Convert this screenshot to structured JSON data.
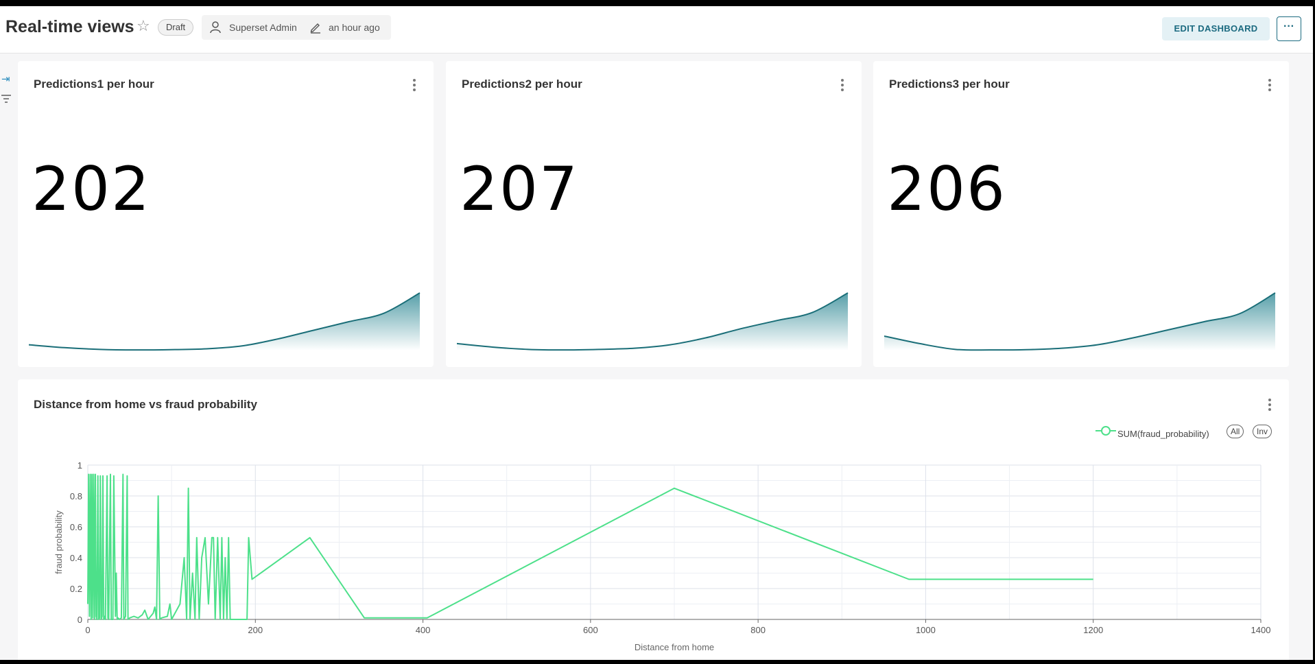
{
  "dashboard": {
    "title": "Real-time views",
    "status": "Draft",
    "owner": "Superset Admin",
    "modified": "an hour ago",
    "edit_label": "EDIT DASHBOARD",
    "more_label": "···"
  },
  "cards": [
    {
      "title": "Predictions1 per hour",
      "value": "202",
      "trend": [
        0.1,
        0.05,
        0.02,
        0.01,
        0.015,
        0.03,
        0.08,
        0.2,
        0.35,
        0.5,
        0.65,
        1.0
      ]
    },
    {
      "title": "Predictions2 per hour",
      "value": "207",
      "trend": [
        0.12,
        0.06,
        0.02,
        0.01,
        0.02,
        0.04,
        0.1,
        0.22,
        0.38,
        0.52,
        0.66,
        1.0
      ]
    },
    {
      "title": "Predictions3 per hour",
      "value": "206",
      "trend": [
        0.25,
        0.12,
        0.02,
        0.01,
        0.015,
        0.04,
        0.1,
        0.22,
        0.36,
        0.5,
        0.64,
        1.0
      ]
    }
  ],
  "scatter_card": {
    "title": "Distance from home vs fraud probability",
    "legend_all": "All",
    "legend_inv": "Inv"
  },
  "chart_data": {
    "type": "line",
    "xlabel": "Distance from home",
    "ylabel": "fraud probability",
    "xlim": [
      0,
      1400
    ],
    "ylim": [
      0,
      1
    ],
    "xticks": [
      "0",
      "200",
      "400",
      "600",
      "800",
      "1000",
      "1200",
      "1400"
    ],
    "yticks": [
      "0",
      "0.2",
      "0.4",
      "0.6",
      "0.8",
      "1"
    ],
    "grid": true,
    "legend": "top-right",
    "color": "#4de08a",
    "series": [
      {
        "name": "SUM(fraud_probability)",
        "x": [
          0,
          1,
          2,
          3,
          4,
          5,
          6,
          7,
          8,
          9,
          10,
          11,
          12,
          13,
          14,
          15,
          16,
          17,
          18,
          19,
          20,
          21,
          23,
          24,
          25,
          27,
          28,
          30,
          31,
          33,
          34,
          35,
          36,
          38,
          40,
          42,
          43,
          45,
          47,
          48,
          50,
          55,
          60,
          65,
          68,
          72,
          75,
          78,
          80,
          82,
          84,
          86,
          88,
          95,
          98,
          100,
          102,
          110,
          115,
          118,
          120,
          122,
          125,
          128,
          130,
          133,
          136,
          140,
          144,
          148,
          150,
          152,
          155,
          158,
          160,
          162,
          164,
          166,
          168,
          170,
          175,
          180,
          185,
          190,
          192,
          196,
          265,
          330,
          405,
          700,
          980,
          1200
        ],
        "y": [
          0.1,
          0.94,
          0.02,
          0.94,
          0.0,
          0.94,
          0.01,
          0.94,
          0.0,
          0.94,
          0.02,
          0.0,
          0.93,
          0.0,
          0.01,
          0.93,
          0.0,
          0.02,
          0.93,
          0.0,
          0.02,
          0.0,
          0.93,
          0.01,
          0.0,
          0.94,
          0.0,
          0.0,
          0.93,
          0.02,
          0.3,
          0.0,
          0.01,
          0.0,
          0.01,
          0.94,
          0.0,
          0.02,
          0.93,
          0.0,
          0.01,
          0.02,
          0.01,
          0.03,
          0.06,
          0.0,
          0.02,
          0.04,
          0.08,
          0.0,
          0.8,
          0.0,
          0.01,
          0.02,
          0.1,
          0.0,
          0.02,
          0.1,
          0.4,
          0.0,
          0.85,
          0.0,
          0.3,
          0.0,
          0.53,
          0.0,
          0.4,
          0.53,
          0.1,
          0.53,
          0.53,
          0.0,
          0.53,
          0.0,
          0.53,
          0.0,
          0.4,
          0.0,
          0.53,
          0.0,
          0.0,
          0.0,
          0.0,
          0.0,
          0.53,
          0.26,
          0.53,
          0.01,
          0.01,
          0.85,
          0.26,
          0.26
        ]
      }
    ]
  }
}
